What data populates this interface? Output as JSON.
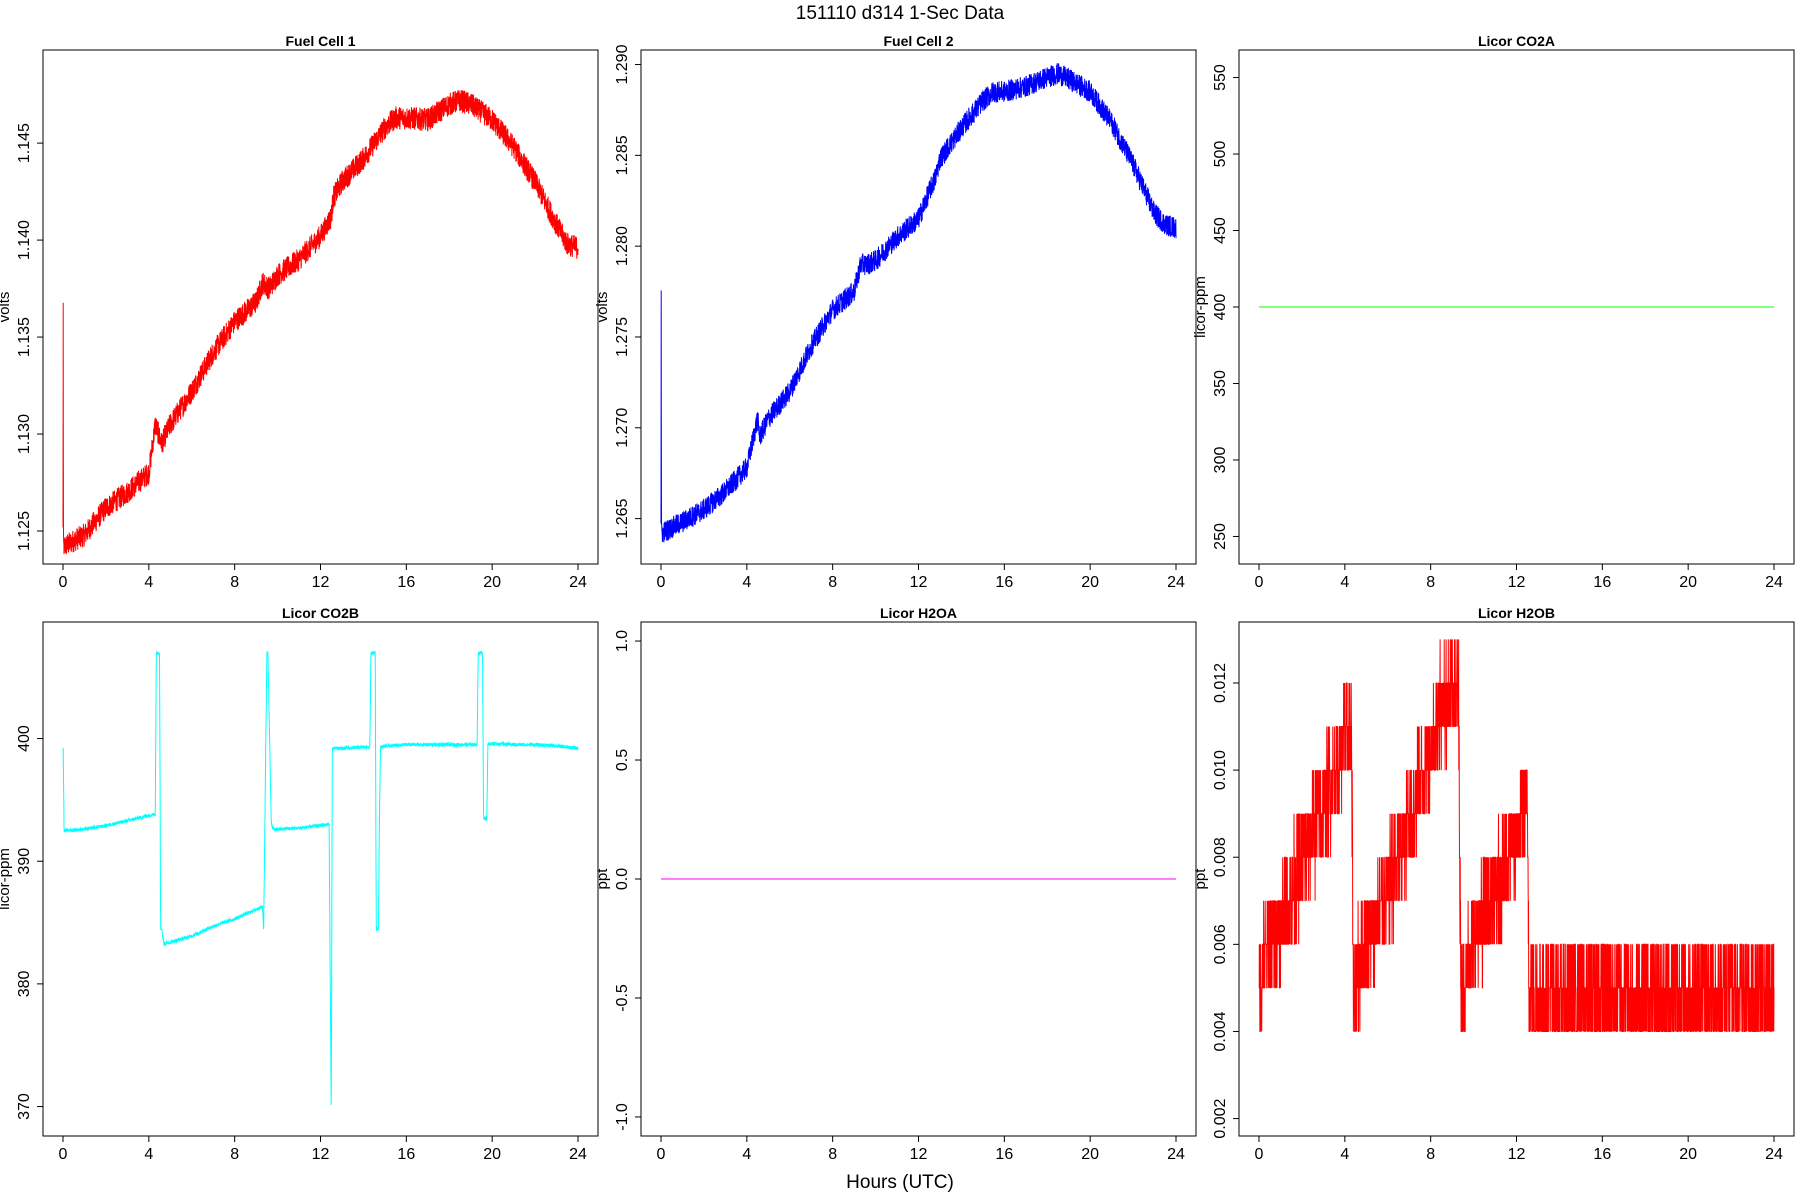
{
  "figure": {
    "title": "151110   d314   1-Sec Data",
    "xlabel": "Hours (UTC)"
  },
  "chart_data": [
    {
      "type": "line",
      "title": "Fuel Cell 1",
      "ylabel": "volts",
      "color": "#ff0000",
      "xlim": [
        0,
        24
      ],
      "ylim": [
        1.1233,
        1.1498
      ],
      "xticks": [
        0,
        4,
        8,
        12,
        16,
        20,
        24
      ],
      "yticks": [
        1.125,
        1.13,
        1.135,
        1.14,
        1.145
      ],
      "ytick_labels": [
        "1.125",
        "1.130",
        "1.135",
        "1.140",
        "1.145"
      ],
      "noise": 0.0006,
      "series": [
        {
          "x": [
            0,
            0.01,
            0.02,
            0.05,
            0.5,
            1.0,
            1.5,
            2.0,
            3.0,
            4.0,
            4.3,
            4.6,
            5.0,
            6.0,
            7.0,
            8.0,
            9.0,
            9.3,
            9.6,
            10.0,
            11.0,
            12.0,
            12.5,
            12.6,
            13.0,
            14.0,
            15.0,
            15.5,
            16.0,
            17.0,
            18.0,
            18.5,
            19.0,
            20.0,
            21.0,
            22.0,
            23.0,
            23.5,
            24.0
          ],
          "y": [
            1.125,
            1.14,
            1.1242,
            1.1242,
            1.1245,
            1.1248,
            1.1255,
            1.1262,
            1.127,
            1.128,
            1.1305,
            1.1295,
            1.1305,
            1.1322,
            1.1342,
            1.1358,
            1.1368,
            1.1378,
            1.1375,
            1.1382,
            1.139,
            1.1402,
            1.1412,
            1.1422,
            1.143,
            1.1442,
            1.1458,
            1.1463,
            1.1463,
            1.1462,
            1.147,
            1.1472,
            1.147,
            1.1462,
            1.1448,
            1.143,
            1.1408,
            1.1398,
            1.1396
          ]
        }
      ]
    },
    {
      "type": "line",
      "title": "Fuel Cell 2",
      "ylabel": "volts",
      "color": "#0000ff",
      "xlim": [
        0,
        24
      ],
      "ylim": [
        1.2625,
        1.2908
      ],
      "xticks": [
        0,
        4,
        8,
        12,
        16,
        20,
        24
      ],
      "yticks": [
        1.265,
        1.27,
        1.275,
        1.28,
        1.285,
        1.29
      ],
      "ytick_labels": [
        "1.265",
        "1.270",
        "1.275",
        "1.280",
        "1.285",
        "1.290"
      ],
      "noise": 0.0006,
      "series": [
        {
          "x": [
            0,
            0.01,
            0.02,
            0.05,
            0.5,
            1.0,
            2.0,
            3.0,
            4.0,
            4.5,
            4.6,
            5.0,
            6.0,
            7.0,
            8.0,
            9.0,
            9.3,
            9.6,
            10.0,
            11.0,
            12.0,
            12.5,
            12.8,
            13.0,
            14.0,
            15.0,
            15.5,
            16.0,
            17.0,
            18.0,
            18.5,
            19.0,
            20.0,
            21.0,
            22.0,
            23.0,
            23.5,
            24.0
          ],
          "y": [
            1.265,
            1.281,
            1.2642,
            1.2642,
            1.2645,
            1.2648,
            1.2655,
            1.2665,
            1.2678,
            1.2705,
            1.2695,
            1.2705,
            1.272,
            1.2745,
            1.2765,
            1.2775,
            1.279,
            1.279,
            1.2792,
            1.2805,
            1.2815,
            1.283,
            1.2838,
            1.2848,
            1.2865,
            1.288,
            1.2885,
            1.2885,
            1.2888,
            1.2893,
            1.2895,
            1.2892,
            1.2885,
            1.2868,
            1.2845,
            1.2818,
            1.2812,
            1.281
          ]
        }
      ]
    },
    {
      "type": "line",
      "title": "Licor CO2A",
      "ylabel": "licor-ppm",
      "color": "#00ff00",
      "xlim": [
        0,
        24
      ],
      "ylim": [
        232,
        568
      ],
      "xticks": [
        0,
        4,
        8,
        12,
        16,
        20,
        24
      ],
      "yticks": [
        250,
        300,
        350,
        400,
        450,
        500,
        550
      ],
      "ytick_labels": [
        "250",
        "300",
        "350",
        "400",
        "450",
        "500",
        "550"
      ],
      "noise": 0,
      "series": [
        {
          "x": [
            0,
            24
          ],
          "y": [
            400,
            400
          ]
        }
      ]
    },
    {
      "type": "line",
      "title": "Licor CO2B",
      "ylabel": "licor-ppm",
      "color": "#00ffff",
      "xlim": [
        0,
        24
      ],
      "ylim": [
        367.6,
        409.5
      ],
      "xticks": [
        0,
        4,
        8,
        12,
        16,
        20,
        24
      ],
      "yticks": [
        370,
        380,
        390,
        400
      ],
      "ytick_labels": [
        "370",
        "380",
        "390",
        "400"
      ],
      "noise": 0.15,
      "series": [
        {
          "x": [
            0,
            0.01,
            0.05,
            1.0,
            2.0,
            3.0,
            4.2,
            4.3,
            4.35,
            4.5,
            4.55,
            4.6,
            4.7,
            5.0,
            6.0,
            7.0,
            8.0,
            9.3,
            9.35,
            9.5,
            9.55,
            9.7,
            9.75,
            9.9,
            10.0,
            11.0,
            12.4,
            12.5,
            12.55,
            12.6,
            12.7,
            13.0,
            14.0,
            14.3,
            14.35,
            14.55,
            14.6,
            14.7,
            14.75,
            14.8,
            15.0,
            16.0,
            17.0,
            18.0,
            19.3,
            19.35,
            19.55,
            19.6,
            19.75,
            19.8,
            20.0,
            21.0,
            22.0,
            23.0,
            24.0
          ],
          "y": [
            399,
            399.3,
            392.5,
            392.6,
            392.9,
            393.3,
            393.8,
            393.8,
            407,
            407,
            384.5,
            384.5,
            383.3,
            383.4,
            383.9,
            384.7,
            385.3,
            386.3,
            384.3,
            407,
            407,
            393.5,
            392.7,
            392.6,
            392.6,
            392.7,
            393,
            369.3,
            399.2,
            399.2,
            399.2,
            399.2,
            399.3,
            399.3,
            407,
            407,
            384.5,
            384.5,
            394.3,
            399.3,
            399.4,
            399.5,
            399.5,
            399.5,
            399.5,
            407,
            407,
            393.5,
            393.5,
            399.5,
            399.6,
            399.5,
            399.5,
            399.4,
            399.2
          ]
        }
      ]
    },
    {
      "type": "line",
      "title": "Licor H2OA",
      "ylabel": "ppt",
      "color": "#ff00ff",
      "xlim": [
        0,
        24
      ],
      "ylim": [
        -1.08,
        1.08
      ],
      "xticks": [
        0,
        4,
        8,
        12,
        16,
        20,
        24
      ],
      "yticks": [
        -1,
        -0.5,
        0,
        0.5,
        1
      ],
      "ytick_labels": [
        "-1.0",
        "-0.5",
        "0.0",
        "0.5",
        "1.0"
      ],
      "noise": 0,
      "series": [
        {
          "x": [
            0,
            24
          ],
          "y": [
            0,
            0
          ]
        }
      ]
    },
    {
      "type": "line",
      "title": "Licor H2OB",
      "ylabel": "ppt",
      "color": "#ff0000",
      "xlim": [
        0,
        24
      ],
      "ylim": [
        0.0016,
        0.0134
      ],
      "xticks": [
        0,
        4,
        8,
        12,
        16,
        20,
        24
      ],
      "yticks": [
        0.002,
        0.004,
        0.006,
        0.008,
        0.01,
        0.012
      ],
      "ytick_labels": [
        "0.002",
        "0.004",
        "0.006",
        "0.008",
        "0.010",
        "0.012"
      ],
      "quantum": 0.001,
      "noise": 0.0012,
      "series": [
        {
          "x": [
            0,
            0.1,
            0.5,
            1.0,
            1.5,
            2.0,
            2.5,
            3.0,
            3.5,
            4.0,
            4.3,
            4.4,
            5.0,
            6.0,
            7.0,
            8.0,
            8.5,
            9.3,
            9.4,
            10.0,
            11.0,
            12.0,
            12.5,
            12.6,
            14.0,
            16.0,
            18.0,
            20.0,
            22.0,
            24.0
          ],
          "y": [
            0.005,
            0.0052,
            0.006,
            0.0065,
            0.0072,
            0.0078,
            0.0085,
            0.0092,
            0.0098,
            0.0106,
            0.011,
            0.005,
            0.006,
            0.0072,
            0.0088,
            0.0105,
            0.0115,
            0.0118,
            0.005,
            0.006,
            0.0072,
            0.0085,
            0.0093,
            0.0049,
            0.0048,
            0.0049,
            0.0049,
            0.0049,
            0.0049,
            0.0049
          ]
        }
      ]
    }
  ]
}
